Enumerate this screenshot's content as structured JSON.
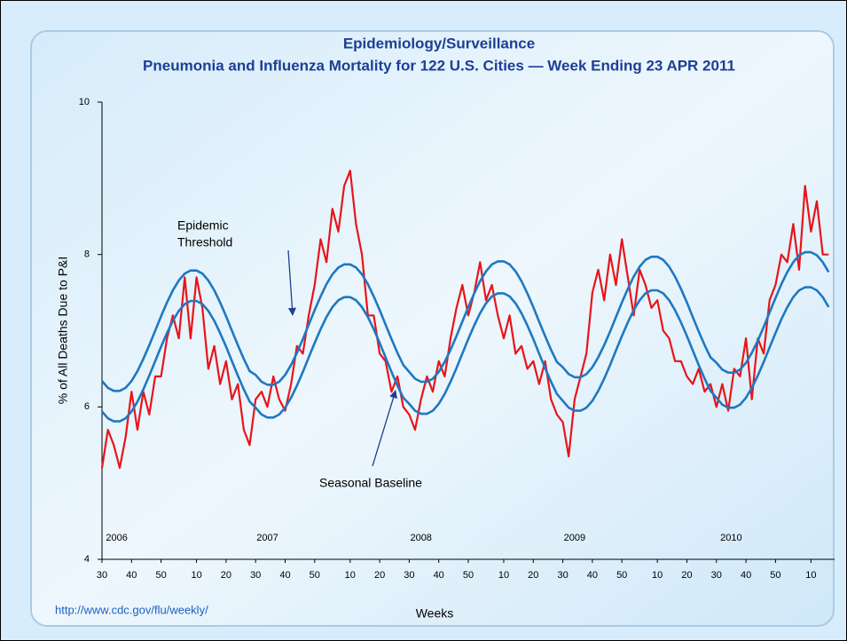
{
  "chart_data": {
    "type": "line",
    "title": "Epidemiology/Surveillance",
    "subtitle": "Pneumonia and Influenza Mortality for 122 U.S. Cities — Week Ending  23 APR 2011",
    "xlabel": "Weeks",
    "ylabel": "% of All Deaths Due to P&I",
    "source": "http://www.cdc.gov/flu/weekly/",
    "years": [
      "2006",
      "2007",
      "2008",
      "2009",
      "2010"
    ],
    "annotations": [
      {
        "lines": [
          "Epidemic",
          "Threshold"
        ]
      },
      {
        "lines": [
          "Seasonal Baseline"
        ]
      }
    ],
    "xlim": [
      0,
      248
    ],
    "ylim": [
      4,
      10
    ],
    "yticks": [
      4,
      6,
      8,
      10
    ],
    "xticks": [
      {
        "value": 0,
        "label": "30"
      },
      {
        "value": 10,
        "label": "40"
      },
      {
        "value": 20,
        "label": "50"
      },
      {
        "value": 32,
        "label": "10"
      },
      {
        "value": 42,
        "label": "20"
      },
      {
        "value": 52,
        "label": "30"
      },
      {
        "value": 62,
        "label": "40"
      },
      {
        "value": 72,
        "label": "50"
      },
      {
        "value": 84,
        "label": "10"
      },
      {
        "value": 94,
        "label": "20"
      },
      {
        "value": 104,
        "label": "30"
      },
      {
        "value": 114,
        "label": "40"
      },
      {
        "value": 124,
        "label": "50"
      },
      {
        "value": 136,
        "label": "10"
      },
      {
        "value": 146,
        "label": "20"
      },
      {
        "value": 156,
        "label": "30"
      },
      {
        "value": 166,
        "label": "40"
      },
      {
        "value": 176,
        "label": "50"
      },
      {
        "value": 188,
        "label": "10"
      },
      {
        "value": 198,
        "label": "20"
      },
      {
        "value": 208,
        "label": "30"
      },
      {
        "value": 218,
        "label": "40"
      },
      {
        "value": 228,
        "label": "50"
      },
      {
        "value": 240,
        "label": "10"
      }
    ],
    "x": [
      0,
      2,
      4,
      6,
      8,
      10,
      12,
      14,
      16,
      18,
      20,
      22,
      24,
      26,
      28,
      30,
      32,
      34,
      36,
      38,
      40,
      42,
      44,
      46,
      48,
      50,
      52,
      54,
      56,
      58,
      60,
      62,
      64,
      66,
      68,
      70,
      72,
      74,
      76,
      78,
      80,
      82,
      84,
      86,
      88,
      90,
      92,
      94,
      96,
      98,
      100,
      102,
      104,
      106,
      108,
      110,
      112,
      114,
      116,
      118,
      120,
      122,
      124,
      126,
      128,
      130,
      132,
      134,
      136,
      138,
      140,
      142,
      144,
      146,
      148,
      150,
      152,
      154,
      156,
      158,
      160,
      162,
      164,
      166,
      168,
      170,
      172,
      174,
      176,
      178,
      180,
      182,
      184,
      186,
      188,
      190,
      192,
      194,
      196,
      198,
      200,
      202,
      204,
      206,
      208,
      210,
      212,
      214,
      216,
      218,
      220,
      222,
      224,
      226,
      228,
      230,
      232,
      234,
      236,
      238,
      240,
      242,
      244,
      246
    ],
    "series": [
      {
        "color": "#e8141a",
        "values": [
          5.2,
          5.7,
          5.5,
          5.2,
          5.6,
          6.2,
          5.7,
          6.2,
          5.9,
          6.4,
          6.4,
          6.9,
          7.2,
          6.9,
          7.7,
          6.9,
          7.7,
          7.3,
          6.5,
          6.8,
          6.3,
          6.6,
          6.1,
          6.3,
          5.7,
          5.5,
          6.1,
          6.2,
          6.0,
          6.4,
          6.1,
          5.95,
          6.3,
          6.8,
          6.7,
          7.2,
          7.6,
          8.2,
          7.9,
          8.6,
          8.3,
          8.9,
          9.1,
          8.4,
          8.0,
          7.2,
          7.2,
          6.7,
          6.6,
          6.2,
          6.4,
          6.0,
          5.9,
          5.7,
          6.1,
          6.4,
          6.2,
          6.6,
          6.4,
          6.9,
          7.3,
          7.6,
          7.2,
          7.5,
          7.9,
          7.4,
          7.6,
          7.2,
          6.9,
          7.2,
          6.7,
          6.8,
          6.5,
          6.6,
          6.3,
          6.6,
          6.1,
          5.9,
          5.8,
          5.35,
          6.1,
          6.4,
          6.7,
          7.5,
          7.8,
          7.4,
          8.0,
          7.6,
          8.2,
          7.7,
          7.2,
          7.8,
          7.6,
          7.3,
          7.4,
          7.0,
          6.9,
          6.6,
          6.6,
          6.4,
          6.3,
          6.5,
          6.2,
          6.3,
          6.0,
          6.3,
          5.95,
          6.5,
          6.4,
          6.9,
          6.1,
          6.9,
          6.7,
          7.4,
          7.6,
          8.0,
          7.9,
          8.4,
          7.8,
          8.9,
          8.3,
          8.7,
          8.0,
          8.0
        ]
      },
      {
        "color": "#1f78c1",
        "values": [
          6.34,
          6.25,
          6.21,
          6.21,
          6.25,
          6.34,
          6.47,
          6.63,
          6.81,
          7.0,
          7.19,
          7.37,
          7.53,
          7.66,
          7.75,
          7.79,
          7.79,
          7.75,
          7.66,
          7.53,
          7.37,
          7.19,
          7.0,
          6.81,
          6.63,
          6.47,
          6.42,
          6.33,
          6.29,
          6.29,
          6.33,
          6.42,
          6.55,
          6.71,
          6.89,
          7.08,
          7.27,
          7.45,
          7.61,
          7.74,
          7.83,
          7.87,
          7.87,
          7.83,
          7.74,
          7.61,
          7.45,
          7.27,
          7.08,
          6.89,
          6.71,
          6.55,
          6.46,
          6.37,
          6.33,
          6.33,
          6.37,
          6.46,
          6.59,
          6.75,
          6.93,
          7.12,
          7.31,
          7.49,
          7.65,
          7.78,
          7.87,
          7.91,
          7.91,
          7.87,
          7.78,
          7.65,
          7.49,
          7.31,
          7.12,
          6.93,
          6.75,
          6.59,
          6.52,
          6.43,
          6.39,
          6.39,
          6.43,
          6.52,
          6.65,
          6.81,
          6.99,
          7.18,
          7.37,
          7.55,
          7.71,
          7.84,
          7.93,
          7.97,
          7.97,
          7.93,
          7.84,
          7.71,
          7.55,
          7.37,
          7.18,
          6.99,
          6.81,
          6.65,
          6.58,
          6.49,
          6.45,
          6.45,
          6.49,
          6.58,
          6.71,
          6.87,
          7.05,
          7.24,
          7.43,
          7.61,
          7.77,
          7.9,
          7.99,
          8.03,
          8.03,
          7.99,
          7.9,
          7.77
        ]
      },
      {
        "color": "#1f78c1",
        "values": [
          5.94,
          5.85,
          5.81,
          5.81,
          5.85,
          5.94,
          6.07,
          6.23,
          6.41,
          6.6,
          6.79,
          6.97,
          7.13,
          7.26,
          7.35,
          7.39,
          7.39,
          7.35,
          7.26,
          7.13,
          6.97,
          6.79,
          6.6,
          6.41,
          6.23,
          6.07,
          5.99,
          5.9,
          5.86,
          5.86,
          5.9,
          5.99,
          6.12,
          6.28,
          6.46,
          6.65,
          6.84,
          7.02,
          7.18,
          7.31,
          7.4,
          7.44,
          7.44,
          7.4,
          7.31,
          7.18,
          7.02,
          6.84,
          6.65,
          6.46,
          6.28,
          6.12,
          6.04,
          5.95,
          5.91,
          5.91,
          5.95,
          6.04,
          6.17,
          6.33,
          6.51,
          6.7,
          6.89,
          7.07,
          7.23,
          7.36,
          7.45,
          7.49,
          7.49,
          7.45,
          7.36,
          7.23,
          7.07,
          6.89,
          6.7,
          6.51,
          6.33,
          6.17,
          6.08,
          5.99,
          5.95,
          5.95,
          5.99,
          6.08,
          6.21,
          6.37,
          6.55,
          6.74,
          6.93,
          7.11,
          7.27,
          7.4,
          7.49,
          7.53,
          7.53,
          7.49,
          7.4,
          7.27,
          7.11,
          6.93,
          6.74,
          6.55,
          6.37,
          6.21,
          6.12,
          6.03,
          5.99,
          5.99,
          6.03,
          6.12,
          6.25,
          6.41,
          6.59,
          6.78,
          6.97,
          7.15,
          7.31,
          7.44,
          7.53,
          7.57,
          7.57,
          7.53,
          7.44,
          7.31
        ]
      }
    ]
  }
}
